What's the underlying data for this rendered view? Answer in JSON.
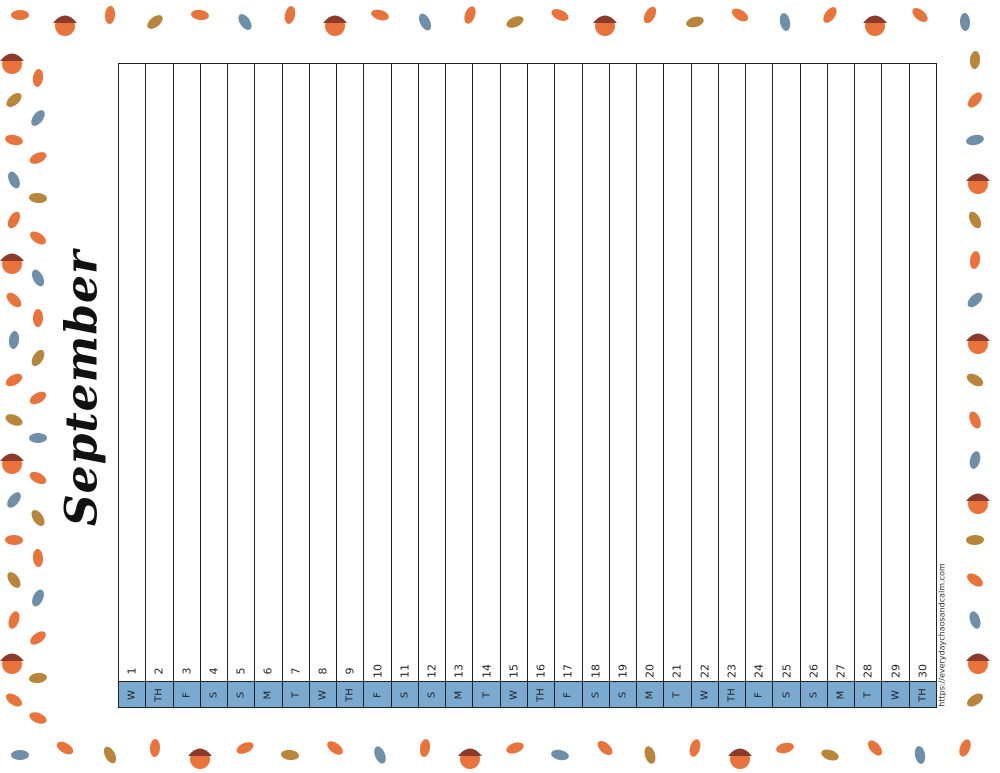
{
  "title": "September",
  "url": "https://everydaychaosandcalm.com",
  "colors": {
    "day_band": "#7aaad0",
    "leaf_orange": "#e8743b",
    "acorn_brown": "#8b3a2b",
    "leaf_blue": "#6f8fa8"
  },
  "days": [
    {
      "num": "1",
      "day": "W"
    },
    {
      "num": "2",
      "day": "TH"
    },
    {
      "num": "3",
      "day": "F"
    },
    {
      "num": "4",
      "day": "S"
    },
    {
      "num": "5",
      "day": "S"
    },
    {
      "num": "6",
      "day": "M"
    },
    {
      "num": "7",
      "day": "T"
    },
    {
      "num": "8",
      "day": "W"
    },
    {
      "num": "9",
      "day": "TH"
    },
    {
      "num": "10",
      "day": "F"
    },
    {
      "num": "11",
      "day": "S"
    },
    {
      "num": "12",
      "day": "S"
    },
    {
      "num": "13",
      "day": "M"
    },
    {
      "num": "14",
      "day": "T"
    },
    {
      "num": "15",
      "day": "W"
    },
    {
      "num": "16",
      "day": "TH"
    },
    {
      "num": "17",
      "day": "F"
    },
    {
      "num": "18",
      "day": "S"
    },
    {
      "num": "19",
      "day": "S"
    },
    {
      "num": "20",
      "day": "M"
    },
    {
      "num": "21",
      "day": "T"
    },
    {
      "num": "22",
      "day": "W"
    },
    {
      "num": "23",
      "day": "TH"
    },
    {
      "num": "24",
      "day": "F"
    },
    {
      "num": "25",
      "day": "S"
    },
    {
      "num": "26",
      "day": "S"
    },
    {
      "num": "27",
      "day": "M"
    },
    {
      "num": "28",
      "day": "T"
    },
    {
      "num": "29",
      "day": "W"
    },
    {
      "num": "30",
      "day": "TH"
    }
  ]
}
